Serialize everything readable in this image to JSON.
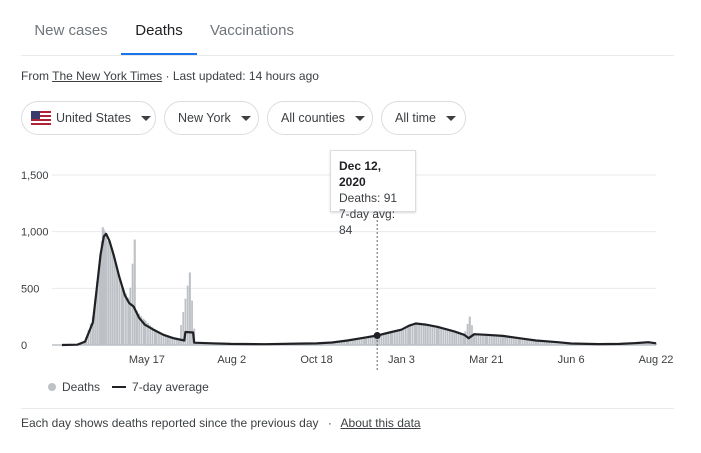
{
  "tabs": [
    {
      "label": "New cases",
      "active": false
    },
    {
      "label": "Deaths",
      "active": true
    },
    {
      "label": "Vaccinations",
      "active": false
    }
  ],
  "source": {
    "prefix": "From ",
    "publisher": "The New York Times",
    "updated": " · Last updated: 14 hours ago"
  },
  "filters": {
    "country": "United States",
    "state": "New York",
    "county": "All counties",
    "range": "All time"
  },
  "tooltip": {
    "date": "Dec 12, 2020",
    "deaths": "Deaths: 91",
    "avg": "7-day avg: 84"
  },
  "legend": {
    "deaths": "Deaths",
    "avg": "7-day average"
  },
  "footer": {
    "note": "Each day shows deaths reported since the previous day",
    "separator": "·",
    "link": "About this data"
  },
  "colors": {
    "bars": "#bdc1c6",
    "avg_line": "#202124",
    "grid": "#e8eaed",
    "accent": "#1a73e8"
  },
  "chart_data": {
    "type": "area",
    "title": "",
    "xlabel": "",
    "ylabel": "",
    "ylim": [
      0,
      1500
    ],
    "y_ticks": [
      0,
      500,
      1000,
      1500
    ],
    "y_tick_labels": [
      "0",
      "500",
      "1,000",
      "1,500"
    ],
    "x_tick_labels": [
      "May 17",
      "Aug 2",
      "Oct 18",
      "Jan 3",
      "Mar 21",
      "Jun 6",
      "Aug 22"
    ],
    "x_tick_dates": [
      "2020-05-17",
      "2020-08-02",
      "2020-10-18",
      "2021-01-03",
      "2021-03-21",
      "2021-06-06",
      "2021-08-22"
    ],
    "x_range": [
      "2020-03-01",
      "2021-08-22"
    ],
    "grid": true,
    "legend_position": "bottom-left",
    "series": [
      {
        "name": "Deaths",
        "style": "bars",
        "points": [
          [
            "2020-03-01",
            0
          ],
          [
            "2020-03-15",
            5
          ],
          [
            "2020-03-22",
            40
          ],
          [
            "2020-03-29",
            250
          ],
          [
            "2020-04-02",
            560
          ],
          [
            "2020-04-05",
            800
          ],
          [
            "2020-04-07",
            1040
          ],
          [
            "2020-04-09",
            1000
          ],
          [
            "2020-04-12",
            920
          ],
          [
            "2020-04-16",
            830
          ],
          [
            "2020-04-20",
            680
          ],
          [
            "2020-04-25",
            510
          ],
          [
            "2020-05-01",
            400
          ],
          [
            "2020-05-06",
            930
          ],
          [
            "2020-05-08",
            300
          ],
          [
            "2020-05-15",
            220
          ],
          [
            "2020-05-25",
            130
          ],
          [
            "2020-06-05",
            85
          ],
          [
            "2020-06-15",
            60
          ],
          [
            "2020-06-25",
            640
          ],
          [
            "2020-06-30",
            20
          ],
          [
            "2020-07-15",
            15
          ],
          [
            "2020-08-01",
            10
          ],
          [
            "2020-09-01",
            7
          ],
          [
            "2020-10-01",
            15
          ],
          [
            "2020-10-18",
            15
          ],
          [
            "2020-11-01",
            25
          ],
          [
            "2020-11-15",
            45
          ],
          [
            "2020-12-01",
            70
          ],
          [
            "2020-12-12",
            91
          ],
          [
            "2020-12-25",
            120
          ],
          [
            "2021-01-03",
            140
          ],
          [
            "2021-01-10",
            180
          ],
          [
            "2021-01-16",
            200
          ],
          [
            "2021-01-25",
            180
          ],
          [
            "2021-02-05",
            170
          ],
          [
            "2021-02-20",
            120
          ],
          [
            "2021-03-01",
            90
          ],
          [
            "2021-03-06",
            250
          ],
          [
            "2021-03-10",
            100
          ],
          [
            "2021-03-21",
            95
          ],
          [
            "2021-04-05",
            85
          ],
          [
            "2021-04-20",
            60
          ],
          [
            "2021-05-05",
            45
          ],
          [
            "2021-05-25",
            30
          ],
          [
            "2021-06-06",
            15
          ],
          [
            "2021-07-01",
            10
          ],
          [
            "2021-07-20",
            12
          ],
          [
            "2021-08-05",
            20
          ],
          [
            "2021-08-15",
            30
          ],
          [
            "2021-08-22",
            20
          ]
        ]
      },
      {
        "name": "7-day average",
        "style": "line",
        "points": [
          [
            "2020-03-01",
            0
          ],
          [
            "2020-03-15",
            3
          ],
          [
            "2020-03-22",
            30
          ],
          [
            "2020-03-29",
            200
          ],
          [
            "2020-04-02",
            540
          ],
          [
            "2020-04-05",
            800
          ],
          [
            "2020-04-08",
            960
          ],
          [
            "2020-04-10",
            980
          ],
          [
            "2020-04-13",
            920
          ],
          [
            "2020-04-17",
            790
          ],
          [
            "2020-04-22",
            600
          ],
          [
            "2020-04-27",
            440
          ],
          [
            "2020-05-01",
            370
          ],
          [
            "2020-05-05",
            340
          ],
          [
            "2020-05-10",
            240
          ],
          [
            "2020-05-15",
            180
          ],
          [
            "2020-05-22",
            140
          ],
          [
            "2020-06-01",
            90
          ],
          [
            "2020-06-10",
            60
          ],
          [
            "2020-06-20",
            40
          ],
          [
            "2020-06-21",
            115
          ],
          [
            "2020-06-28",
            110
          ],
          [
            "2020-06-29",
            20
          ],
          [
            "2020-07-15",
            15
          ],
          [
            "2020-08-01",
            10
          ],
          [
            "2020-09-01",
            7
          ],
          [
            "2020-10-01",
            12
          ],
          [
            "2020-10-18",
            14
          ],
          [
            "2020-11-01",
            22
          ],
          [
            "2020-11-15",
            40
          ],
          [
            "2020-12-01",
            65
          ],
          [
            "2020-12-12",
            84
          ],
          [
            "2020-12-25",
            115
          ],
          [
            "2021-01-03",
            135
          ],
          [
            "2021-01-10",
            170
          ],
          [
            "2021-01-16",
            190
          ],
          [
            "2021-01-25",
            180
          ],
          [
            "2021-02-05",
            160
          ],
          [
            "2021-02-20",
            120
          ],
          [
            "2021-03-01",
            90
          ],
          [
            "2021-03-05",
            60
          ],
          [
            "2021-03-10",
            95
          ],
          [
            "2021-03-21",
            90
          ],
          [
            "2021-04-05",
            80
          ],
          [
            "2021-04-20",
            60
          ],
          [
            "2021-05-05",
            40
          ],
          [
            "2021-05-25",
            25
          ],
          [
            "2021-06-06",
            13
          ],
          [
            "2021-07-01",
            8
          ],
          [
            "2021-07-20",
            10
          ],
          [
            "2021-08-05",
            18
          ],
          [
            "2021-08-15",
            25
          ],
          [
            "2021-08-22",
            15
          ]
        ]
      }
    ],
    "highlight": {
      "date": "2020-12-12",
      "deaths": 91,
      "avg": 84
    }
  }
}
